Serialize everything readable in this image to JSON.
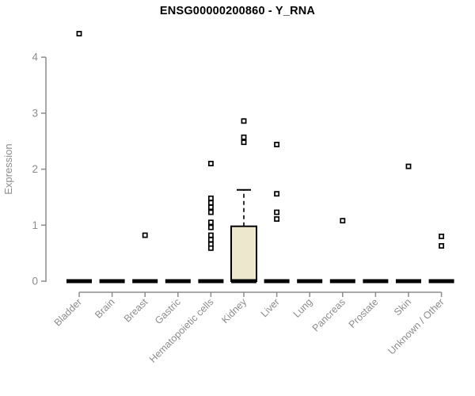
{
  "chart_data": {
    "type": "boxplot",
    "title": "ENSG00000200860 - Y_RNA",
    "ylabel": "Expression",
    "xlabel": "",
    "ylim": [
      0,
      4
    ],
    "yticks": [
      0,
      1,
      2,
      3,
      4
    ],
    "grid": false,
    "legend": null,
    "categories": [
      "Bladder",
      "Brain",
      "Breast",
      "Gastric",
      "Hematopoietic cells",
      "Kidney",
      "Liver",
      "Lung",
      "Pancreas",
      "Prostate",
      "Skin",
      "Unknown / Other"
    ],
    "boxes": [
      {
        "category": "Bladder",
        "whisker_low": 0,
        "q1": 0,
        "median": 0,
        "q3": 0,
        "whisker_high": 0,
        "outliers": [
          4.42
        ]
      },
      {
        "category": "Brain",
        "whisker_low": 0,
        "q1": 0,
        "median": 0,
        "q3": 0,
        "whisker_high": 0,
        "outliers": []
      },
      {
        "category": "Breast",
        "whisker_low": 0,
        "q1": 0,
        "median": 0,
        "q3": 0,
        "whisker_high": 0,
        "outliers": [
          0.82
        ]
      },
      {
        "category": "Gastric",
        "whisker_low": 0,
        "q1": 0,
        "median": 0,
        "q3": 0,
        "whisker_high": 0,
        "outliers": []
      },
      {
        "category": "Hematopoietic cells",
        "whisker_low": 0,
        "q1": 0,
        "median": 0,
        "q3": 0,
        "whisker_high": 0,
        "outliers": [
          2.1,
          1.48,
          1.4,
          1.32,
          1.23,
          1.05,
          0.96,
          0.82,
          0.74,
          0.66,
          0.59
        ]
      },
      {
        "category": "Kidney",
        "whisker_low": 0,
        "q1": 0,
        "median": 0,
        "q3": 0.98,
        "whisker_high": 1.63,
        "outliers": [
          2.86,
          2.57,
          2.48
        ]
      },
      {
        "category": "Liver",
        "whisker_low": 0,
        "q1": 0,
        "median": 0,
        "q3": 0,
        "whisker_high": 0,
        "outliers": [
          2.44,
          1.56,
          1.23,
          1.11
        ]
      },
      {
        "category": "Lung",
        "whisker_low": 0,
        "q1": 0,
        "median": 0,
        "q3": 0,
        "whisker_high": 0,
        "outliers": []
      },
      {
        "category": "Pancreas",
        "whisker_low": 0,
        "q1": 0,
        "median": 0,
        "q3": 0,
        "whisker_high": 0,
        "outliers": [
          1.08
        ]
      },
      {
        "category": "Prostate",
        "whisker_low": 0,
        "q1": 0,
        "median": 0,
        "q3": 0,
        "whisker_high": 0,
        "outliers": []
      },
      {
        "category": "Skin",
        "whisker_low": 0,
        "q1": 0,
        "median": 0,
        "q3": 0,
        "whisker_high": 0,
        "outliers": [
          2.05
        ]
      },
      {
        "category": "Unknown / Other",
        "whisker_low": 0,
        "q1": 0,
        "median": 0,
        "q3": 0,
        "whisker_high": 0,
        "outliers": [
          0.8,
          0.63
        ]
      }
    ],
    "marker": "open-square",
    "colors": {
      "box_fill": "#ECE7CD",
      "box_border": "#000000",
      "median": "#000000",
      "whisker": "#000000",
      "outlier_fill": "#FFFFFF",
      "outlier_border": "#000000",
      "axis": "#8C8C8C",
      "tick_text": "#8C8C8C",
      "title_text": "#000000",
      "background": "#FFFFFF"
    }
  }
}
